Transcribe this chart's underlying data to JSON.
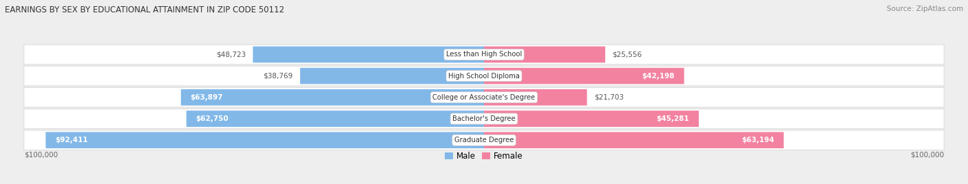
{
  "title": "EARNINGS BY SEX BY EDUCATIONAL ATTAINMENT IN ZIP CODE 50112",
  "source": "Source: ZipAtlas.com",
  "categories": [
    "Less than High School",
    "High School Diploma",
    "College or Associate's Degree",
    "Bachelor's Degree",
    "Graduate Degree"
  ],
  "male_values": [
    48723,
    38769,
    63897,
    62750,
    92411
  ],
  "female_values": [
    25556,
    42198,
    21703,
    45281,
    63194
  ],
  "max_value": 100000,
  "male_color": "#82B8E8",
  "female_color": "#F282A0",
  "bg_color": "#EEEEEE",
  "row_bg": "#F5F5F5",
  "row_border": "#DDDDDD",
  "label_dark": "#555555",
  "label_white": "#FFFFFF"
}
